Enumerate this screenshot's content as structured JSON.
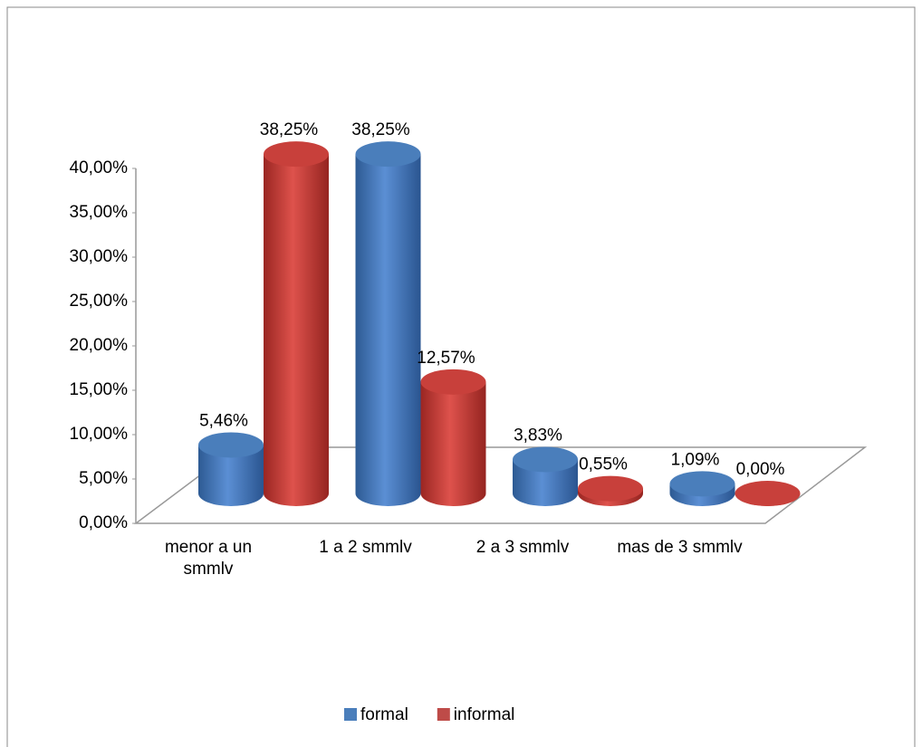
{
  "chart_data": {
    "type": "bar3d",
    "categories": [
      "menor a un smmlv",
      "1 a 2 smmlv",
      "2 a 3 smmlv",
      "mas de 3 smmlv"
    ],
    "series": [
      {
        "name": "formal",
        "color": "#4a7ebb",
        "values": [
          5.46,
          38.25,
          3.83,
          1.09
        ],
        "value_labels": [
          "5,46%",
          "38,25%",
          "3,83%",
          "1,09%"
        ]
      },
      {
        "name": "informal",
        "color": "#be4b48",
        "values": [
          38.25,
          12.57,
          0.55,
          0.0
        ],
        "value_labels": [
          "38,25%",
          "12,57%",
          "0,55%",
          "0,00%"
        ]
      }
    ],
    "ylim": [
      0,
      40
    ],
    "yticks": [
      {
        "value": 0,
        "label": "0,00%"
      },
      {
        "value": 5,
        "label": "5,00%"
      },
      {
        "value": 10,
        "label": "10,00%"
      },
      {
        "value": 15,
        "label": "15,00%"
      },
      {
        "value": 20,
        "label": "20,00%"
      },
      {
        "value": 25,
        "label": "25,00%"
      },
      {
        "value": 30,
        "label": "30,00%"
      },
      {
        "value": 35,
        "label": "35,00%"
      },
      {
        "value": 40,
        "label": "40,00%"
      }
    ],
    "legend": "bottom"
  }
}
